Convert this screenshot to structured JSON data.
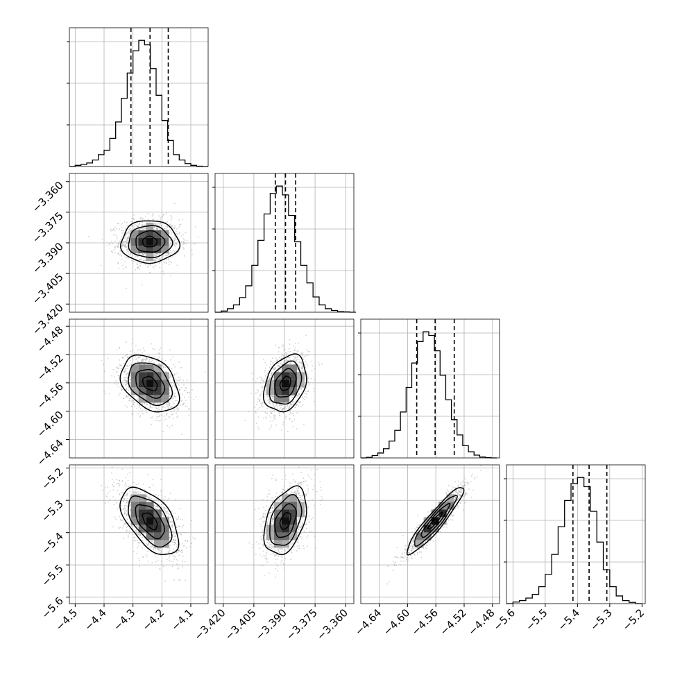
{
  "chart_data": {
    "type": "corner",
    "title": "",
    "parameters": 4,
    "grid": true,
    "colors": {
      "axes": "#000000",
      "grid": "#b0b0b0",
      "scatter": "#9a9a9a"
    },
    "axes": [
      {
        "range": [
          -4.52,
          -4.04
        ],
        "ticks": [
          -4.5,
          -4.4,
          -4.3,
          -4.2,
          -4.1
        ],
        "tick_labels": [
          "−4.5",
          "−4.4",
          "−4.3",
          "−4.2",
          "−4.1"
        ]
      },
      {
        "range": [
          -3.424,
          -3.356
        ],
        "ticks": [
          -3.42,
          -3.405,
          -3.39,
          -3.375,
          -3.36
        ],
        "tick_labels": [
          "−3.420",
          "−3.405",
          "−3.390",
          "−3.375",
          "−3.360"
        ]
      },
      {
        "range": [
          -4.666,
          -4.47
        ],
        "ticks": [
          -4.64,
          -4.6,
          -4.56,
          -4.52,
          -4.48
        ],
        "tick_labels": [
          "−4.64",
          "−4.60",
          "−4.56",
          "−4.52",
          "−4.48"
        ]
      },
      {
        "range": [
          -5.62,
          -5.19
        ],
        "ticks": [
          -5.6,
          -5.5,
          -5.4,
          -5.3,
          -5.2
        ],
        "tick_labels": [
          "−5.6",
          "−5.5",
          "−5.4",
          "−5.3",
          "−5.2"
        ]
      }
    ],
    "marginals": [
      {
        "quantiles": [
          -4.307,
          -4.241,
          -4.178
        ],
        "bins": [
          -4.52,
          -4.5,
          -4.48,
          -4.46,
          -4.44,
          -4.42,
          -4.4,
          -4.38,
          -4.36,
          -4.34,
          -4.32,
          -4.3,
          -4.28,
          -4.26,
          -4.24,
          -4.22,
          -4.2,
          -4.18,
          -4.16,
          -4.14,
          -4.12,
          -4.1,
          -4.08,
          -4.06,
          -4.04
        ],
        "counts": [
          0,
          4,
          7,
          12,
          22,
          40,
          55,
          95,
          150,
          230,
          315,
          390,
          425,
          410,
          330,
          240,
          155,
          88,
          40,
          22,
          10,
          4,
          1,
          0
        ]
      },
      {
        "quantiles": [
          -3.3945,
          -3.3895,
          -3.3845
        ],
        "bins": [
          -3.424,
          -3.421,
          -3.418,
          -3.415,
          -3.412,
          -3.409,
          -3.406,
          -3.403,
          -3.4,
          -3.397,
          -3.394,
          -3.391,
          -3.388,
          -3.385,
          -3.382,
          -3.379,
          -3.376,
          -3.373,
          -3.37,
          -3.367,
          -3.364,
          -3.361,
          -3.358,
          -3.355
        ],
        "counts": [
          0,
          4,
          12,
          25,
          50,
          90,
          160,
          245,
          335,
          405,
          430,
          400,
          330,
          240,
          160,
          100,
          52,
          25,
          12,
          6,
          2,
          1,
          0
        ]
      },
      {
        "quantiles": [
          -4.587,
          -4.561,
          -4.534
        ],
        "bins": [
          -4.666,
          -4.658,
          -4.65,
          -4.642,
          -4.634,
          -4.626,
          -4.618,
          -4.61,
          -4.602,
          -4.594,
          -4.586,
          -4.578,
          -4.57,
          -4.562,
          -4.554,
          -4.546,
          -4.538,
          -4.53,
          -4.522,
          -4.514,
          -4.506,
          -4.498,
          -4.49,
          -4.482,
          -4.474
        ],
        "counts": [
          0,
          2,
          8,
          16,
          30,
          55,
          90,
          150,
          230,
          310,
          380,
          412,
          400,
          350,
          270,
          190,
          125,
          75,
          40,
          20,
          9,
          3,
          1,
          0
        ]
      },
      {
        "quantiles": [
          -5.414,
          -5.364,
          -5.309
        ],
        "bins": [
          -5.62,
          -5.6,
          -5.58,
          -5.56,
          -5.54,
          -5.52,
          -5.5,
          -5.48,
          -5.46,
          -5.44,
          -5.42,
          -5.4,
          -5.38,
          -5.36,
          -5.34,
          -5.32,
          -5.3,
          -5.28,
          -5.26,
          -5.24,
          -5.22,
          -5.2
        ],
        "counts": [
          0,
          5,
          10,
          18,
          30,
          55,
          95,
          160,
          250,
          335,
          390,
          410,
          380,
          300,
          200,
          110,
          55,
          25,
          10,
          4,
          0
        ]
      }
    ],
    "joints": [
      {
        "i": 1,
        "j": 0,
        "center": [
          -4.242,
          -3.3895
        ],
        "sd": [
          0.05,
          0.0052
        ],
        "rho": 0.0
      },
      {
        "i": 2,
        "j": 0,
        "center": [
          -4.241,
          -4.561
        ],
        "sd": [
          0.05,
          0.02
        ],
        "rho": -0.35
      },
      {
        "i": 2,
        "j": 1,
        "center": [
          -3.3895,
          -4.561
        ],
        "sd": [
          0.0052,
          0.02
        ],
        "rho": 0.3
      },
      {
        "i": 3,
        "j": 0,
        "center": [
          -4.241,
          -5.364
        ],
        "sd": [
          0.05,
          0.052
        ],
        "rho": -0.55
      },
      {
        "i": 3,
        "j": 1,
        "center": [
          -3.3895,
          -5.364
        ],
        "sd": [
          0.0052,
          0.052
        ],
        "rho": 0.4
      },
      {
        "i": 3,
        "j": 2,
        "center": [
          -4.561,
          -5.364
        ],
        "sd": [
          0.02,
          0.052
        ],
        "rho": 0.93
      }
    ]
  }
}
